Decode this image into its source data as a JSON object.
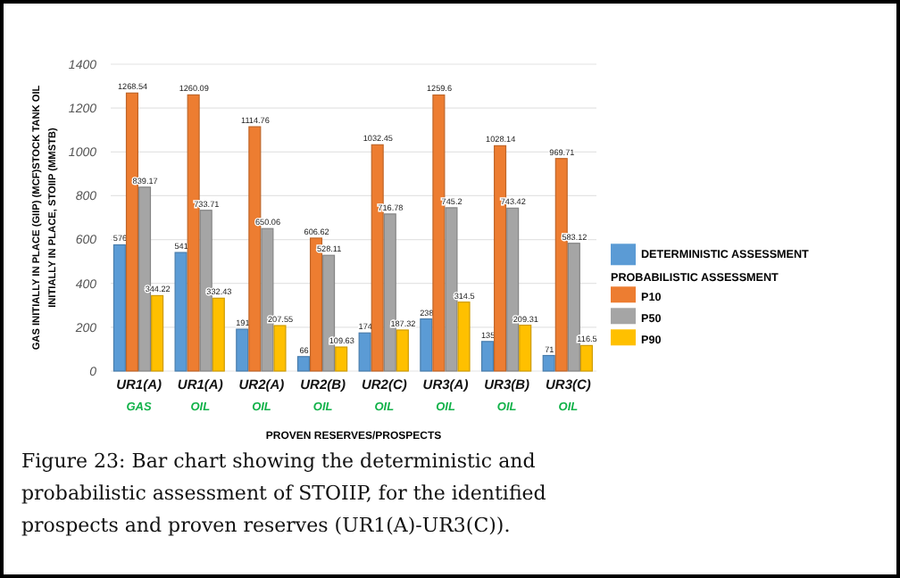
{
  "chart_data": {
    "type": "bar",
    "categories": [
      "UR1(A)\nGAS",
      "UR1(A)\nOIL",
      "UR2(A)\nOIL",
      "UR2(B)\nOIL",
      "UR2(C)\nOIL",
      "UR3(A)\nOIL",
      "UR3(B)\nOIL",
      "UR3(C)\nOIL"
    ],
    "series": [
      {
        "name": "DETERMINISTIC ASSESSMENT",
        "color": "#5b9bd5",
        "values": [
          576,
          541,
          191,
          66,
          174,
          238,
          135,
          71
        ],
        "value_labels": [
          "576",
          "541",
          "191",
          "66",
          "174",
          "238",
          "135",
          "71"
        ]
      },
      {
        "name": "P10",
        "color": "#ed7d31",
        "values": [
          1268.54,
          1260.09,
          1114.76,
          606.62,
          1032.45,
          1259.6,
          1028.14,
          969.71
        ],
        "value_labels": [
          "1268.54",
          "1260.09",
          "1114.76",
          "606.62",
          "1032.45",
          "1259.6",
          "1028.14",
          "969.71"
        ]
      },
      {
        "name": "P50",
        "color": "#a5a5a5",
        "values": [
          839.17,
          733.71,
          650.06,
          528.11,
          716.78,
          745.2,
          743.42,
          583.12
        ],
        "value_labels": [
          "839.17",
          "733.71",
          "650.06",
          "528.11",
          "716.78",
          "745.2",
          "743.42",
          "583.12"
        ]
      },
      {
        "name": "P90",
        "color": "#ffc000",
        "values": [
          344.22,
          332.43,
          207.55,
          109.63,
          187.32,
          314.5,
          209.31,
          116.5
        ],
        "value_labels": [
          "344.22",
          "332.43",
          "207.55",
          "109.63",
          "187.32",
          "314.5",
          "209.31",
          "116.5"
        ]
      }
    ],
    "legend_title": "PROBABILISTIC ASSESSMENT",
    "legend": "right",
    "xlabel": "PROVEN RESERVES/PROSPECTS",
    "ylabel": "GAS INITIALLY IN PLACE (GIIP) (MCF)STOCK TANK OIL\nINITIALLY IN PLACE, STOIIP (MMSTB)",
    "ylim": [
      0,
      1400
    ],
    "yticks": [
      0,
      200,
      400,
      600,
      800,
      1000,
      1200,
      1400
    ],
    "grid": "y",
    "annotations": [
      "Figure 23: Bar chart showing the deterministic and probabilistic assessment of STOIIP, for the identified prospects and proven reserves (UR1(A)-UR3(C))."
    ]
  }
}
